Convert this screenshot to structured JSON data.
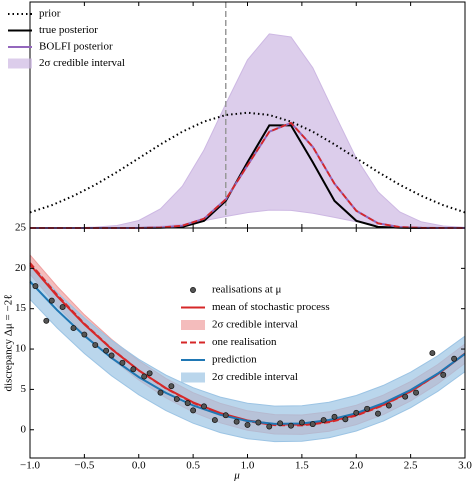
{
  "chart_data": [
    {
      "type": "line",
      "x": [
        -1,
        -0.8,
        -0.6,
        -0.4,
        -0.2,
        0,
        0.2,
        0.4,
        0.6,
        0.8,
        1.0,
        1.2,
        1.4,
        1.6,
        1.8,
        2.0,
        2.2,
        2.4,
        2.6,
        2.8,
        3.0
      ],
      "xlim": [
        -1,
        3
      ],
      "ylim": [
        0,
        1
      ],
      "xticks": [
        -1,
        -0.5,
        0,
        0.5,
        1,
        1.5,
        2,
        2.5,
        3
      ],
      "vline": {
        "x": 0.8,
        "color": "#999999"
      },
      "band": {
        "name": "2σ credible interval",
        "color": "#cdb8e3",
        "upper": [
          0,
          0,
          0.001,
          0.004,
          0.011,
          0.033,
          0.085,
          0.185,
          0.345,
          0.549,
          0.744,
          0.859,
          0.845,
          0.709,
          0.507,
          0.309,
          0.16,
          0.071,
          0.027,
          0.009,
          0.003
        ],
        "lower": [
          0,
          0,
          0,
          0,
          0.001,
          0.003,
          0.008,
          0.017,
          0.032,
          0.051,
          0.068,
          0.079,
          0.078,
          0.065,
          0.047,
          0.028,
          0.015,
          0.007,
          0.002,
          0.001,
          0
        ]
      },
      "series": [
        {
          "name": "prior",
          "color": "#000000",
          "dash": "dotted",
          "values": [
            0.069,
            0.101,
            0.142,
            0.191,
            0.248,
            0.309,
            0.37,
            0.426,
            0.471,
            0.5,
            0.51,
            0.5,
            0.471,
            0.426,
            0.37,
            0.309,
            0.248,
            0.191,
            0.142,
            0.101,
            0.069
          ]
        },
        {
          "name": "true posterior",
          "color": "#000000",
          "values": [
            0,
            0,
            0,
            0,
            0,
            0,
            0.001,
            0.005,
            0.032,
            0.12,
            0.291,
            0.454,
            0.454,
            0.291,
            0.12,
            0.032,
            0.005,
            0.001,
            0,
            0,
            0
          ]
        },
        {
          "name": "BOLFI posterior",
          "color": "#9467bd",
          "overlay": {
            "color": "#d62728",
            "dash": "dashed"
          },
          "values": [
            0,
            0,
            0,
            0,
            0,
            0,
            0.002,
            0.01,
            0.041,
            0.127,
            0.277,
            0.426,
            0.465,
            0.359,
            0.196,
            0.076,
            0.021,
            0.004,
            0.001,
            0,
            0
          ]
        }
      ]
    },
    {
      "type": "line",
      "x": [
        -1,
        -0.75,
        -0.5,
        -0.25,
        0,
        0.25,
        0.5,
        0.75,
        1,
        1.25,
        1.5,
        1.75,
        2,
        2.25,
        2.5,
        2.75,
        3
      ],
      "xlim": [
        -1,
        3
      ],
      "ylim": [
        -3.5,
        25
      ],
      "xlabel": "μ",
      "ylabel": "discrepancy Δμ = −2ℓ",
      "xticks": [
        {
          "value": -1,
          "label": "−1.0"
        },
        {
          "value": -0.5,
          "label": "−0.5"
        },
        {
          "value": 0,
          "label": "0.0"
        },
        {
          "value": 0.5,
          "label": "0.5"
        },
        {
          "value": 1,
          "label": "1.0"
        },
        {
          "value": 1.5,
          "label": "1.5"
        },
        {
          "value": 2,
          "label": "2.0"
        },
        {
          "value": 2.5,
          "label": "2.5"
        },
        {
          "value": 3,
          "label": "3.0"
        }
      ],
      "yticks": [
        0,
        5,
        10,
        15,
        20,
        25
      ],
      "points": {
        "name": "realisations at μ",
        "color": "#555555",
        "x": [
          -0.95,
          -0.85,
          -0.8,
          -0.7,
          -0.6,
          -0.5,
          -0.4,
          -0.3,
          -0.25,
          -0.15,
          -0.05,
          0.05,
          0.1,
          0.2,
          0.3,
          0.35,
          0.45,
          0.5,
          0.6,
          0.7,
          0.8,
          0.9,
          1.0,
          1.1,
          1.2,
          1.3,
          1.4,
          1.5,
          1.6,
          1.7,
          1.8,
          1.9,
          2.0,
          2.1,
          2.2,
          2.3,
          2.45,
          2.55,
          2.7,
          2.8,
          2.9
        ],
        "y": [
          17.8,
          13.5,
          16.0,
          15.2,
          12.6,
          11.8,
          10.5,
          9.8,
          9.2,
          8.3,
          7.5,
          6.6,
          7.0,
          4.6,
          5.4,
          3.8,
          3.3,
          2.4,
          2.9,
          1.2,
          1.8,
          1.0,
          0.6,
          0.9,
          0.4,
          0.8,
          0.5,
          0.9,
          0.7,
          1.2,
          1.6,
          1.3,
          2.1,
          2.6,
          2.0,
          3.0,
          4.1,
          4.6,
          9.5,
          6.8,
          8.8
        ]
      },
      "bands": [
        {
          "name": "2σ credible interval",
          "color": "#f0a0a0",
          "upper": [
            21.67,
            17.75,
            14.25,
            11.2,
            8.56,
            6.36,
            4.59,
            3.26,
            2.35,
            1.88,
            1.83,
            2.22,
            3.04,
            4.29,
            5.97,
            8.09,
            10.63
          ],
          "lower": [
            19.27,
            15.35,
            11.85,
            8.8,
            6.16,
            3.96,
            2.19,
            0.86,
            -0.05,
            -0.52,
            -0.57,
            -0.18,
            0.64,
            1.89,
            3.57,
            5.69,
            8.23
          ]
        },
        {
          "name": "2σ credible interval",
          "color": "#9cc4e4",
          "upper": [
            20.57,
            17.01,
            13.85,
            11.09,
            8.73,
            6.77,
            5.21,
            4.05,
            3.29,
            2.93,
            2.97,
            3.41,
            4.25,
            5.49,
            7.13,
            9.17,
            11.61
          ],
          "lower": [
            16.17,
            12.61,
            9.45,
            6.69,
            4.33,
            2.37,
            0.81,
            -0.35,
            -1.11,
            -1.47,
            -1.43,
            -0.99,
            -0.15,
            1.09,
            2.73,
            4.77,
            7.21
          ]
        }
      ],
      "series": [
        {
          "name": "mean of stochastic process",
          "color": "#d62728",
          "values": [
            20.47,
            16.55,
            13.05,
            10.0,
            7.36,
            5.16,
            3.39,
            2.06,
            1.15,
            0.68,
            0.63,
            1.02,
            1.84,
            3.09,
            4.77,
            6.89,
            9.43
          ]
        },
        {
          "name": "one realisation",
          "color": "#d62728",
          "dash": "dashed",
          "values": [
            20.66,
            16.68,
            13.14,
            10.03,
            7.36,
            5.13,
            3.34,
            1.98,
            1.06,
            0.58,
            0.54,
            0.93,
            1.76,
            3.03,
            4.74,
            6.88,
            9.46
          ]
        },
        {
          "name": "prediction",
          "color": "#1f77b4",
          "values": [
            18.37,
            14.81,
            11.65,
            8.89,
            6.53,
            4.57,
            3.01,
            1.85,
            1.09,
            0.73,
            0.77,
            1.21,
            2.05,
            3.29,
            4.93,
            6.97,
            9.41
          ]
        }
      ]
    }
  ]
}
